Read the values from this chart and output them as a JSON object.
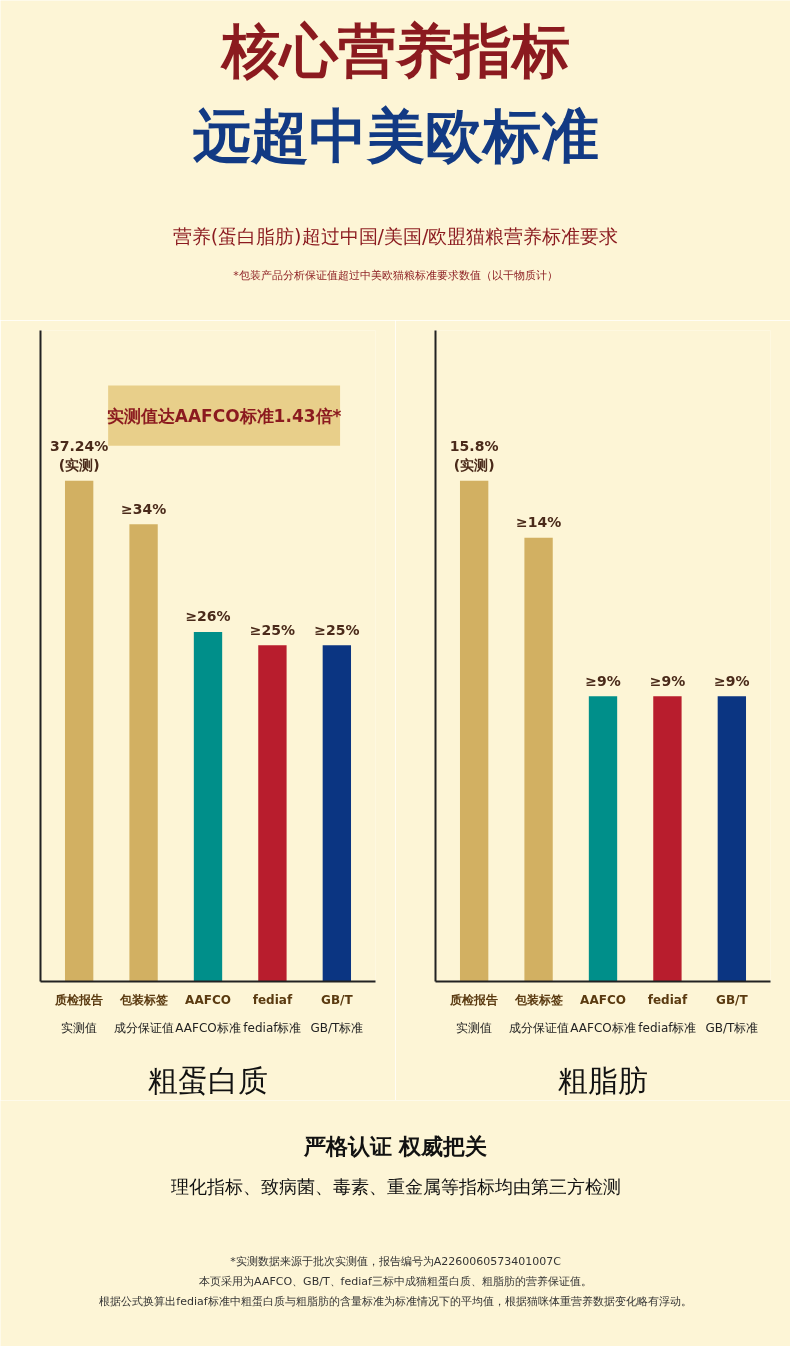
{
  "chart_data": [
    {
      "type": "bar",
      "title": "核心营养指标远超中美欧标准",
      "subtitle": "营养(蛋白脂肪)超过中国/美国/欧盟猫粮营养标准要求",
      "annotations": [
        "*包装产品分析保证值超过中美欧猫粮标准要求数值（以干物质计）",
        "实测值达AAFCO标准1.43倍*",
        "严格认证 权威把关",
        "理化指标、致病菌、毒素、重金属等指标均由第三方检测",
        "*实测数据来源于批次实测值，报告编号为A2260060573401007C",
        "本页采用为AAFCO、GB/T、fediaf三标中成猫粗蛋白质、粗脂肪的营养保证值。",
        "根据公式换算出fediaf标准中粗蛋白质与粗脂肪的含量标准为标准情况下的平均值，根据猫咪体重营养数据变化略有浮动。",
        "质检报告",
        "包装标签",
        "AAFCO",
        "fediaf",
        "GB/T"
      ],
      "xlabel": "粗蛋白质",
      "categories": [
        "实测值",
        "成分保证值",
        "AAFCO标准",
        "fediaf标准",
        "GB/T标准"
      ],
      "values": [
        37.24,
        34,
        26,
        25,
        25
      ],
      "colors": [
        "#d2b062",
        "#d2b062",
        "#008f8a",
        "#b81d2d",
        "#0b3582"
      ],
      "value_labels": [
        "37.24%\n(实测)",
        "≥34%",
        "≥26%",
        "≥25%",
        "≥25%"
      ],
      "tick_labels": "x",
      "grid": false
    },
    {
      "type": "bar",
      "xlabel": "粗脂肪",
      "annotations": [
        "质检报告",
        "包装标签",
        "AAFCO",
        "fediaf",
        "GB/T"
      ],
      "categories": [
        "实测值",
        "成分保证值",
        "AAFCO标准",
        "fediaf标准",
        "GB/T标准"
      ],
      "values": [
        15.8,
        14,
        9,
        9,
        9
      ],
      "colors": [
        "#d2b062",
        "#d2b062",
        "#008f8a",
        "#b81d2d",
        "#0b3582"
      ],
      "value_labels": [
        "15.8%\n(实测)",
        "≥14%",
        "≥9%",
        "≥9%",
        "≥9%"
      ],
      "tick_labels": "x",
      "grid": false
    }
  ]
}
